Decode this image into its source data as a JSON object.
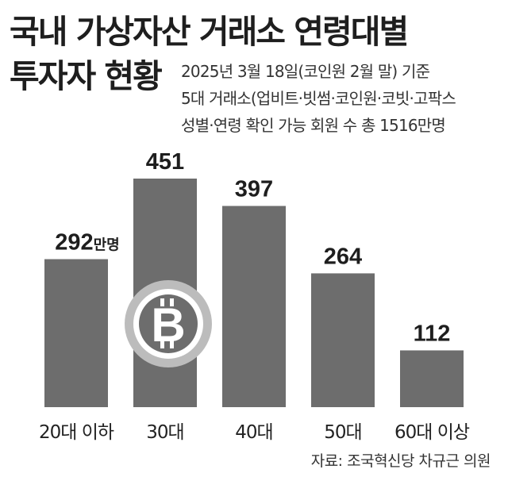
{
  "chart_data": {
    "type": "bar",
    "title": "국내 가상자산 거래소 연령대별",
    "title_line2": "투자자 현황",
    "notes": [
      "2025년 3월 18일(코인원 2월 말) 기준",
      "5대 거래소(업비트·빗썸·코인원·코빗·고팍스",
      "성별·연령 확인 가능 회원 수 총 1516만명"
    ],
    "categories": [
      "20대 이하",
      "30대",
      "40대",
      "50대",
      "60대 이상"
    ],
    "values": [
      292,
      451,
      397,
      264,
      112
    ],
    "value_labels": [
      "292",
      "451",
      "397",
      "264",
      "112"
    ],
    "unit": "만명",
    "ylim": [
      0,
      451
    ],
    "grid": false,
    "bar_color": "#6d6d6d",
    "source": "자료: 조국혁신당 차규근 의원"
  }
}
